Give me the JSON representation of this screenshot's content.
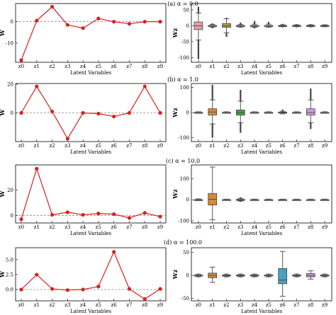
{
  "figure": {
    "xlabel": "Latent Variables",
    "categories": [
      "z0",
      "z1",
      "z2",
      "z3",
      "z4",
      "z5",
      "z6",
      "z7",
      "z8",
      "z9"
    ],
    "line_ylabel": "W",
    "box_ylabel": "Wz"
  },
  "colors": {
    "line": "#d62020",
    "dashed": "#888888",
    "palette": [
      "#e8a0a8",
      "#d0d0d0",
      "#b5a04a",
      "#d0d0d0",
      "#d0d0d0",
      "#d0d0d0",
      "#d0d0d0",
      "#d0d0d0",
      "#d0d0d0",
      "#d0d0d0"
    ]
  },
  "chart_data": [
    {
      "type": "line",
      "panel_title": "(a) α = 0.0",
      "ylabel": "W",
      "xlabel": "Latent Variables",
      "categories": [
        "z0",
        "z1",
        "z2",
        "z3",
        "z4",
        "z5",
        "z6",
        "z7",
        "z8",
        "z9"
      ],
      "values": [
        -18,
        0.5,
        7,
        -1.5,
        -3,
        1.5,
        0,
        -1,
        0,
        0
      ],
      "ylim": [
        -19,
        8.5
      ],
      "yticks": [
        0,
        -10
      ],
      "reference_line": 0
    },
    {
      "type": "box",
      "ylabel": "Wz",
      "xlabel": "Latent Variables",
      "categories": [
        "z0",
        "z1",
        "z2",
        "z3",
        "z4",
        "z5",
        "z6",
        "z7",
        "z8",
        "z9"
      ],
      "ylim": [
        -115,
        70
      ],
      "yticks": [
        50,
        0,
        -50,
        -100
      ],
      "boxes": [
        {
          "q1": -12,
          "median": 0,
          "q3": 12,
          "wlo": -45,
          "whi": 40,
          "color": "#e8a0a8",
          "tails": [
            60,
            -105
          ]
        },
        {
          "q1": -1,
          "median": 0,
          "q3": 1,
          "wlo": -4,
          "whi": 4,
          "color": "#d0d0d0",
          "tails": [
            8,
            -8
          ]
        },
        {
          "q1": -5,
          "median": 0,
          "q3": 7,
          "wlo": -22,
          "whi": 22,
          "color": "#b5a04a",
          "tails": [
            25,
            -35
          ]
        },
        {
          "q1": -1,
          "median": 0,
          "q3": 1,
          "wlo": -4,
          "whi": 4,
          "color": "#d0d0d0",
          "tails": [
            10,
            -6
          ]
        },
        {
          "q1": -1,
          "median": 0,
          "q3": 1,
          "wlo": -5,
          "whi": 5,
          "color": "#d0d0d0",
          "tails": [
            15,
            -8
          ]
        },
        {
          "q1": -1,
          "median": 0,
          "q3": 1,
          "wlo": -5,
          "whi": 5,
          "color": "#d0d0d0",
          "tails": [
            12,
            -5
          ]
        },
        {
          "q1": -1,
          "median": 0,
          "q3": 1,
          "wlo": -3,
          "whi": 3,
          "color": "#d0d0d0",
          "tails": [
            6,
            -5
          ]
        },
        {
          "q1": -1,
          "median": 0,
          "q3": 1,
          "wlo": -3,
          "whi": 3,
          "color": "#d0d0d0",
          "tails": [
            5,
            -5
          ]
        },
        {
          "q1": -1,
          "median": 0,
          "q3": 1,
          "wlo": -3,
          "whi": 3,
          "color": "#d0d0d0",
          "tails": [
            5,
            -5
          ]
        },
        {
          "q1": -1,
          "median": 0,
          "q3": 1,
          "wlo": -3,
          "whi": 3,
          "color": "#d0d0d0",
          "tails": [
            4,
            -4
          ]
        }
      ]
    },
    {
      "type": "line",
      "panel_title": "(b) α = 1.0",
      "ylabel": "W",
      "xlabel": "Latent Variables",
      "categories": [
        "z0",
        "z1",
        "z2",
        "z3",
        "z4",
        "z5",
        "z6",
        "z7",
        "z8",
        "z9"
      ],
      "values": [
        0,
        18.5,
        1,
        -18,
        0,
        -0.5,
        -2.5,
        0,
        18.5,
        0
      ],
      "ylim": [
        -20,
        20.5
      ],
      "yticks": [
        20,
        0
      ],
      "reference_line": 0
    },
    {
      "type": "box",
      "ylabel": "Wz",
      "xlabel": "Latent Variables",
      "categories": [
        "z0",
        "z1",
        "z2",
        "z3",
        "z4",
        "z5",
        "z6",
        "z7",
        "z8",
        "z9"
      ],
      "ylim": [
        -115,
        115
      ],
      "yticks": [
        100,
        0,
        -100
      ],
      "boxes": [
        {
          "q1": -1,
          "median": 0,
          "q3": 1,
          "wlo": -3,
          "whi": 3,
          "color": "#d0d0d0",
          "tails": [
            4,
            -4
          ]
        },
        {
          "q1": -10,
          "median": 2,
          "q3": 15,
          "wlo": -45,
          "whi": 50,
          "color": "#d88a3a",
          "tails": [
            110,
            -100
          ]
        },
        {
          "q1": -1,
          "median": 0,
          "q3": 1,
          "wlo": -3,
          "whi": 3,
          "color": "#d0d0d0",
          "tails": [
            4,
            -4
          ]
        },
        {
          "q1": -10,
          "median": 0,
          "q3": 10,
          "wlo": -40,
          "whi": 45,
          "color": "#4aa04a",
          "tails": [
            90,
            -80
          ]
        },
        {
          "q1": -1,
          "median": 0,
          "q3": 1,
          "wlo": -3,
          "whi": 3,
          "color": "#d0d0d0",
          "tails": [
            4,
            -4
          ]
        },
        {
          "q1": -1,
          "median": 0,
          "q3": 1,
          "wlo": -3,
          "whi": 3,
          "color": "#d0d0d0",
          "tails": [
            4,
            -4
          ]
        },
        {
          "q1": -1,
          "median": 0,
          "q3": 2,
          "wlo": -5,
          "whi": 5,
          "color": "#d0d0d0",
          "tails": [
            12,
            -6
          ]
        },
        {
          "q1": -1,
          "median": 0,
          "q3": 1,
          "wlo": -3,
          "whi": 3,
          "color": "#d0d0d0",
          "tails": [
            4,
            -4
          ]
        },
        {
          "q1": -10,
          "median": 0,
          "q3": 15,
          "wlo": -40,
          "whi": 50,
          "color": "#c99ae0",
          "tails": [
            95,
            -65
          ]
        },
        {
          "q1": -1,
          "median": 0,
          "q3": 1,
          "wlo": -3,
          "whi": 3,
          "color": "#d0d0d0",
          "tails": [
            4,
            -4
          ]
        }
      ]
    },
    {
      "type": "line",
      "panel_title": "(c) α = 10.0",
      "ylabel": "W",
      "xlabel": "Latent Variables",
      "categories": [
        "z0",
        "z1",
        "z2",
        "z3",
        "z4",
        "z5",
        "z6",
        "z7",
        "z8",
        "z9"
      ],
      "values": [
        -3,
        37,
        0.5,
        2.5,
        0.5,
        1.5,
        1,
        -2,
        2,
        -1
      ],
      "ylim": [
        -6,
        40
      ],
      "yticks": [
        20,
        0
      ],
      "reference_line": 0
    },
    {
      "type": "box",
      "ylabel": "Wz",
      "xlabel": "Latent Variables",
      "categories": [
        "z0",
        "z1",
        "z2",
        "z3",
        "z4",
        "z5",
        "z6",
        "z7",
        "z8",
        "z9"
      ],
      "ylim": [
        -110,
        165
      ],
      "yticks": [
        100,
        0,
        -100
      ],
      "boxes": [
        {
          "q1": -1,
          "median": 0,
          "q3": 1,
          "wlo": -4,
          "whi": 4,
          "color": "#d0d0d0",
          "tails": [
            6,
            -6
          ]
        },
        {
          "q1": -25,
          "median": 2,
          "q3": 30,
          "wlo": -95,
          "whi": 155,
          "color": "#d88a3a",
          "tails": []
        },
        {
          "q1": -1,
          "median": 0,
          "q3": 1,
          "wlo": -3,
          "whi": 3,
          "color": "#d0d0d0",
          "tails": [
            4,
            -4
          ]
        },
        {
          "q1": -2,
          "median": 0,
          "q3": 2,
          "wlo": -6,
          "whi": 6,
          "color": "#d0d0d0",
          "tails": [
            12,
            -10
          ]
        },
        {
          "q1": -1,
          "median": 0,
          "q3": 1,
          "wlo": -3,
          "whi": 3,
          "color": "#d0d0d0",
          "tails": [
            4,
            -4
          ]
        },
        {
          "q1": -1,
          "median": 0,
          "q3": 1,
          "wlo": -3,
          "whi": 3,
          "color": "#d0d0d0",
          "tails": [
            4,
            -4
          ]
        },
        {
          "q1": -1,
          "median": 0,
          "q3": 1,
          "wlo": -3,
          "whi": 3,
          "color": "#d0d0d0",
          "tails": [
            4,
            -4
          ]
        },
        {
          "q1": -1,
          "median": 0,
          "q3": 1,
          "wlo": -3,
          "whi": 3,
          "color": "#d0d0d0",
          "tails": [
            4,
            -4
          ]
        },
        {
          "q1": -1,
          "median": 0,
          "q3": 1,
          "wlo": -3,
          "whi": 3,
          "color": "#d0d0d0",
          "tails": [
            4,
            -4
          ]
        },
        {
          "q1": -1,
          "median": 0,
          "q3": 1,
          "wlo": -3,
          "whi": 3,
          "color": "#d0d0d0",
          "tails": [
            4,
            -4
          ]
        }
      ]
    },
    {
      "type": "line",
      "panel_title": "(d) α = 100.0",
      "ylabel": "W",
      "xlabel": "Latent Variables",
      "categories": [
        "z0",
        "z1",
        "z2",
        "z3",
        "z4",
        "z5",
        "z6",
        "z7",
        "z8",
        "z9"
      ],
      "values": [
        0,
        2.5,
        0.1,
        -0.1,
        0,
        0.5,
        6.3,
        0.1,
        -1.6,
        0.1
      ],
      "ylim": [
        -1.9,
        7
      ],
      "yticks": [
        5.0,
        2.5,
        0.0
      ],
      "tick_labels": [
        "5.0",
        "2.5",
        "0.0"
      ],
      "reference_line": 0
    },
    {
      "type": "box",
      "ylabel": "Wz",
      "xlabel": "Latent Variables",
      "categories": [
        "z0",
        "z1",
        "z2",
        "z3",
        "z4",
        "z5",
        "z6",
        "z7",
        "z8",
        "z9"
      ],
      "ylim": [
        -55,
        60
      ],
      "yticks": [
        50,
        0,
        -50
      ],
      "boxes": [
        {
          "q1": -1,
          "median": 0,
          "q3": 1,
          "wlo": -3,
          "whi": 3,
          "color": "#d0d0d0",
          "tails": [
            4,
            -4
          ]
        },
        {
          "q1": -5,
          "median": 0,
          "q3": 5,
          "wlo": -15,
          "whi": 18,
          "color": "#d88a3a",
          "tails": []
        },
        {
          "q1": -1,
          "median": 0,
          "q3": 1,
          "wlo": -3,
          "whi": 3,
          "color": "#d0d0d0",
          "tails": [
            4,
            -4
          ]
        },
        {
          "q1": -1,
          "median": 0,
          "q3": 1,
          "wlo": -3,
          "whi": 3,
          "color": "#d0d0d0",
          "tails": [
            4,
            -4
          ]
        },
        {
          "q1": -1,
          "median": 0,
          "q3": 1,
          "wlo": -3,
          "whi": 3,
          "color": "#d0d0d0",
          "tails": [
            4,
            -4
          ]
        },
        {
          "q1": -1,
          "median": 0,
          "q3": 1,
          "wlo": -3,
          "whi": 3,
          "color": "#d0d0d0",
          "tails": [
            4,
            -4
          ]
        },
        {
          "q1": -18,
          "median": -10,
          "q3": 15,
          "wlo": -45,
          "whi": 52,
          "color": "#4aa0c0",
          "tails": []
        },
        {
          "q1": -1,
          "median": 0,
          "q3": 1,
          "wlo": -3,
          "whi": 3,
          "color": "#d0d0d0",
          "tails": [
            4,
            -4
          ]
        },
        {
          "q1": -3,
          "median": 0,
          "q3": 4,
          "wlo": -8,
          "whi": 10,
          "color": "#c99ae0",
          "tails": []
        },
        {
          "q1": -1,
          "median": 0,
          "q3": 1,
          "wlo": -3,
          "whi": 3,
          "color": "#d0d0d0",
          "tails": [
            4,
            -4
          ]
        }
      ]
    }
  ]
}
